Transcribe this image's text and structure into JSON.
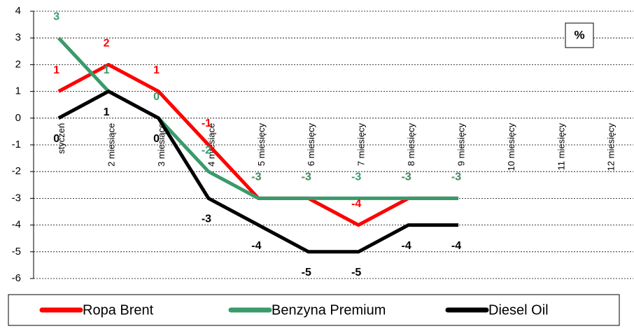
{
  "chart_data": {
    "type": "line",
    "categories": [
      "styczeń",
      "2 miesiące",
      "3 miesiące",
      "4 miesiące",
      "5 miesięcy",
      "6 miesięcy",
      "7 miesięcy",
      "8 miesięcy",
      "9 miesięcy",
      "10 miesięcy",
      "11 miesięcy",
      "12 miesięcy"
    ],
    "series": [
      {
        "name": "Ropa Brent",
        "color": "#ff0000",
        "values": [
          1,
          2,
          1,
          -1,
          -3,
          -3,
          -4,
          -3,
          -3,
          null,
          null,
          null
        ]
      },
      {
        "name": "Benzyna Premium",
        "color": "#3a9a6c",
        "values": [
          3,
          1,
          0,
          -2,
          -3,
          -3,
          -3,
          -3,
          -3,
          null,
          null,
          null
        ]
      },
      {
        "name": "Diesel Oil",
        "color": "#000000",
        "values": [
          0,
          1,
          0,
          -3,
          -4,
          -5,
          -5,
          -4,
          -4,
          null,
          null,
          null
        ]
      }
    ],
    "unit_box": "%",
    "ylim": [
      -6,
      4
    ],
    "yticks": [
      -6,
      -5,
      -4,
      -3,
      -2,
      -1,
      0,
      1,
      2,
      3,
      4
    ],
    "grid": true,
    "legend": "bottom"
  }
}
